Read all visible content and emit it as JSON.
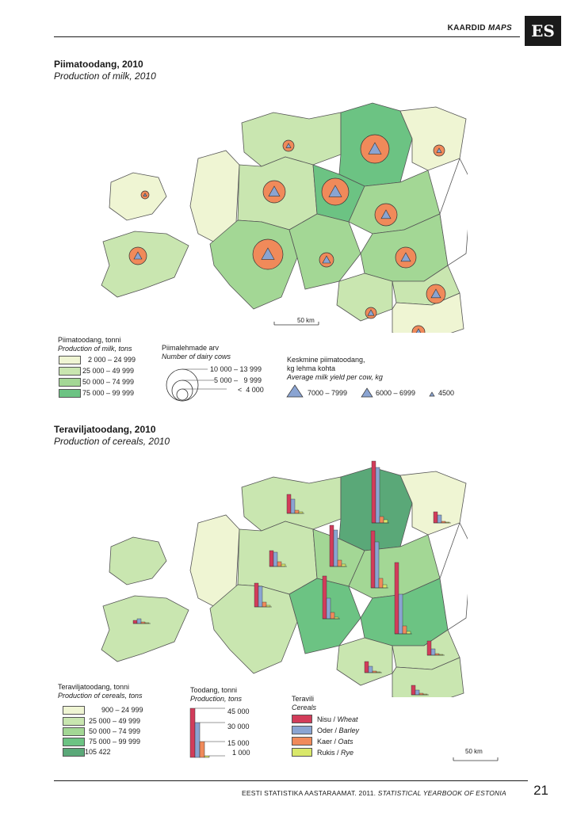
{
  "header": {
    "section": "KAARDID",
    "section_en": "MAPS",
    "logo": "ES"
  },
  "milk": {
    "title": "Piimatoodang, 2010",
    "subtitle": "Production of milk, 2010",
    "scale": "50 km",
    "legend_title": "Piimatoodang, tonni",
    "legend_title_en": "Production of milk, tons",
    "classes": [
      "2 000 – 24 999",
      "25 000 – 49 999",
      "50 000 – 74 999",
      "75 000 – 99 999"
    ],
    "colors": [
      "#eff5d3",
      "#c9e6b0",
      "#a3d795",
      "#6cc383"
    ],
    "cows_title": "Piimalehmade arv",
    "cows_title_en": "Number of dairy cows",
    "cows_values": [
      "10 000 – 13 999",
      "5 000 –   9 999",
      "<  4 000"
    ],
    "yield_title_1": "Keskmine piimatoodang,",
    "yield_title_2": "kg lehma kohta",
    "yield_title_en": "Average milk yield per cow, kg",
    "yield_values": [
      "7000 – 7999",
      "6000 – 6999",
      "4500"
    ],
    "circle_color": "#f08a5a",
    "triangle_color": "#8aa4d2"
  },
  "cereals": {
    "title": "Teraviljatoodang, 2010",
    "subtitle": "Production of cereals, 2010",
    "scale": "50 km",
    "legend_title": "Teraviljatoodang, tonni",
    "legend_title_en": "Production of cereals, tons",
    "classes": [
      "900 – 24 999",
      "25 000 – 49 999",
      "50 000 – 74 999",
      "75 000 – 99 999",
      "105 422"
    ],
    "colors": [
      "#eff5d3",
      "#c9e6b0",
      "#a3d795",
      "#6cc383",
      "#5aa878"
    ],
    "prod_title": "Toodang, tonni",
    "prod_title_en": "Production, tons",
    "prod_values": [
      "45 000",
      "30 000",
      "15 000",
      "1 000"
    ],
    "crop_title": "Teravili",
    "crop_title_en": "Cereals",
    "crops": [
      {
        "et": "Nisu",
        "en": "Wheat",
        "color": "#d23c5a"
      },
      {
        "et": "Oder",
        "en": "Barley",
        "color": "#8aa4d2"
      },
      {
        "et": "Kaer",
        "en": "Oats",
        "color": "#f08a5a"
      },
      {
        "et": "Rukis",
        "en": "Rye",
        "color": "#d9e86a"
      }
    ]
  },
  "footer": {
    "text": "EESTI STATISTIKA AASTARAAMAT. 2011.",
    "text_en": "STATISTICAL YEARBOOK OF ESTONIA",
    "page": "21"
  }
}
